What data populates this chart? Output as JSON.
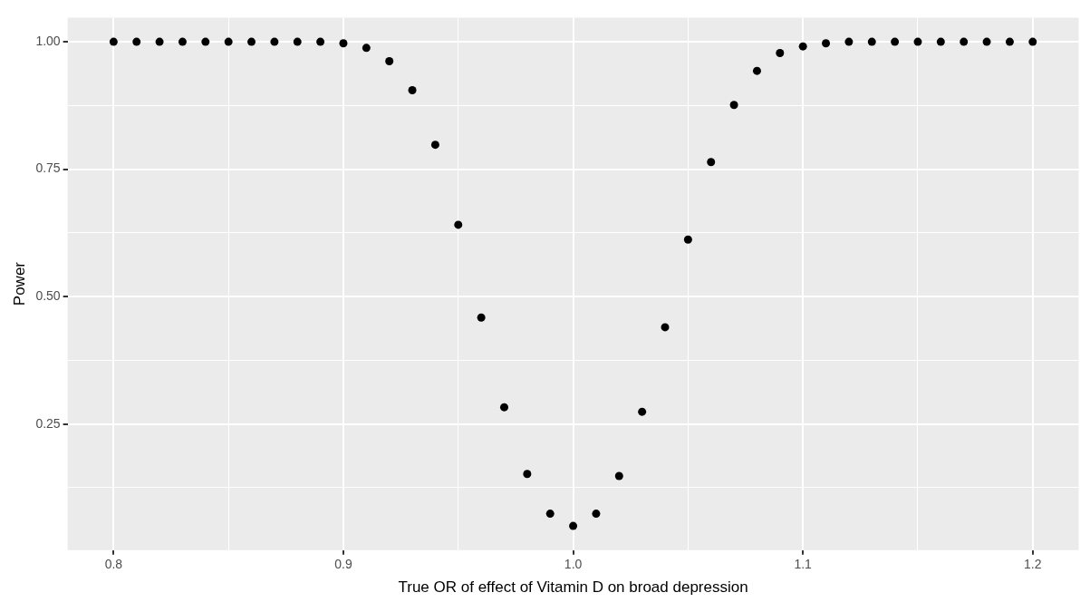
{
  "chart_data": {
    "type": "scatter",
    "xlabel": "True OR of effect of Vitamin D on broad depression",
    "ylabel": "Power",
    "x": [
      0.8,
      0.81,
      0.82,
      0.83,
      0.84,
      0.85,
      0.86,
      0.87,
      0.88,
      0.89,
      0.9,
      0.91,
      0.92,
      0.93,
      0.94,
      0.95,
      0.96,
      0.97,
      0.98,
      0.99,
      1.0,
      1.01,
      1.02,
      1.03,
      1.04,
      1.05,
      1.06,
      1.07,
      1.08,
      1.09,
      1.1,
      1.11,
      1.12,
      1.13,
      1.14,
      1.15,
      1.16,
      1.17,
      1.18,
      1.19,
      1.2
    ],
    "series": [
      {
        "color": "#000000",
        "values": [
          1.0,
          1.0,
          1.0,
          1.0,
          1.0,
          1.0,
          1.0,
          1.0,
          1.0,
          1.0,
          0.997,
          0.988,
          0.962,
          0.905,
          0.798,
          0.641,
          0.459,
          0.283,
          0.152,
          0.074,
          0.05,
          0.074,
          0.148,
          0.274,
          0.44,
          0.612,
          0.764,
          0.876,
          0.943,
          0.978,
          0.991,
          0.997,
          1.0,
          1.0,
          1.0,
          1.0,
          1.0,
          1.0,
          1.0,
          1.0,
          1.0
        ]
      }
    ],
    "xlim": [
      0.78,
      1.22
    ],
    "xticks": [
      0.8,
      {
        "value": 0.85,
        "label": null
      },
      {
        "value": 0.9,
        "label": "0.9"
      },
      {
        "value": 0.95,
        "label": null
      },
      {
        "value": 1.0,
        "label": "1.0"
      },
      {
        "value": 1.05,
        "label": null
      },
      1.1,
      {
        "value": 1.15,
        "label": null
      },
      1.2
    ],
    "ylim": [
      0.0025,
      1.0475
    ],
    "yticks": [
      {
        "value": 0.125,
        "label": null
      },
      {
        "value": 0.25,
        "label": "0.25"
      },
      {
        "value": 0.375,
        "label": null
      },
      {
        "value": 0.5,
        "label": "0.50"
      },
      {
        "value": 0.625,
        "label": null
      },
      {
        "value": 0.75,
        "label": "0.75"
      },
      {
        "value": 0.875,
        "label": null
      },
      {
        "value": 1.0,
        "label": "1.00"
      }
    ],
    "grid": true,
    "marker": "circle",
    "legend": false
  }
}
